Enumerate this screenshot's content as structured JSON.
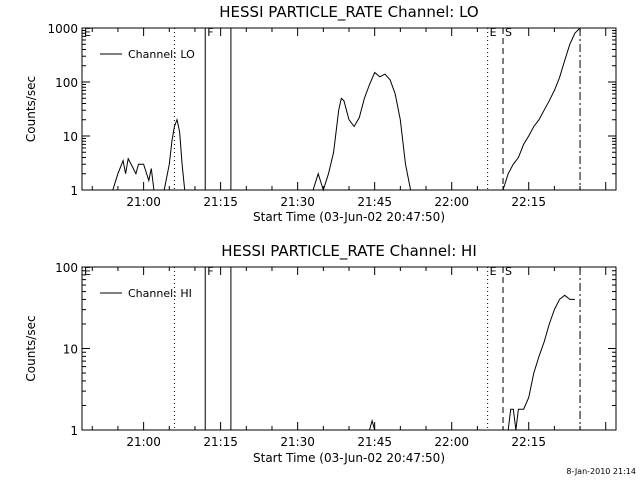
{
  "footer_text": "8-Jan-2010 21:14",
  "chart_data": [
    {
      "type": "line",
      "title": "HESSI PARTICLE_RATE Channel: LO",
      "xlabel": "Start Time (03-Jun-02 20:47:50)",
      "ylabel": "Counts/sec",
      "y_scale": "log",
      "ylim": [
        1,
        1000
      ],
      "xlim": [
        "20:48",
        "22:32"
      ],
      "x_ticks": [
        "21:00",
        "21:15",
        "21:30",
        "21:45",
        "22:00",
        "22:15"
      ],
      "y_ticks": [
        "1",
        "10",
        "100",
        "1000"
      ],
      "legend": {
        "label": "Channel: LO",
        "placement": "top-left"
      },
      "markers": [
        {
          "label": "E",
          "time": "20:48",
          "style": "none"
        },
        {
          "label": "",
          "time": "21:06",
          "style": "dotted"
        },
        {
          "label": "F",
          "time": "21:12",
          "style": "solid"
        },
        {
          "label": "",
          "time": "21:17",
          "style": "solid"
        },
        {
          "label": "E",
          "time": "22:07",
          "style": "dotted"
        },
        {
          "label": "S",
          "time": "22:10",
          "style": "dashed"
        },
        {
          "label": "",
          "time": "22:25",
          "style": "dashdot"
        }
      ],
      "series": [
        {
          "segments": [
            [
              [
                "20:54",
                1
              ],
              [
                "20:55",
                2
              ],
              [
                "20:56",
                3.5
              ],
              [
                "20:56.5",
                2
              ],
              [
                "20:57",
                3.8
              ],
              [
                "20:58",
                2.5
              ],
              [
                "20:58.5",
                2
              ],
              [
                "20:59",
                3
              ],
              [
                "21:00",
                3
              ],
              [
                "21:01",
                1.5
              ],
              [
                "21:01.5",
                2.5
              ],
              [
                "21:02",
                1
              ]
            ],
            [
              [
                "21:04",
                1
              ],
              [
                "21:05",
                3
              ],
              [
                "21:05.5",
                8
              ],
              [
                "21:06",
                15
              ],
              [
                "21:06.5",
                20
              ],
              [
                "21:07",
                12
              ],
              [
                "21:07.5",
                3
              ],
              [
                "21:08",
                1
              ]
            ],
            [
              [
                "21:33",
                1
              ],
              [
                "21:34",
                2
              ],
              [
                "21:35",
                1
              ],
              [
                "21:36",
                2
              ],
              [
                "21:37",
                5
              ],
              [
                "21:38",
                30
              ],
              [
                "21:38.5",
                50
              ],
              [
                "21:39",
                45
              ],
              [
                "21:40",
                20
              ],
              [
                "21:41",
                15
              ],
              [
                "21:42",
                22
              ],
              [
                "21:43",
                50
              ],
              [
                "21:44",
                90
              ],
              [
                "21:45",
                150
              ],
              [
                "21:46",
                125
              ],
              [
                "21:47",
                140
              ],
              [
                "21:48",
                110
              ],
              [
                "21:49",
                60
              ],
              [
                "21:50",
                20
              ],
              [
                "21:51",
                3
              ],
              [
                "21:52",
                1
              ]
            ],
            [
              [
                "22:10",
                1
              ],
              [
                "22:11",
                2
              ],
              [
                "22:12",
                3
              ],
              [
                "22:13",
                4
              ],
              [
                "22:14",
                7
              ],
              [
                "22:15",
                10
              ],
              [
                "22:16",
                15
              ],
              [
                "22:17",
                20
              ],
              [
                "22:18",
                30
              ],
              [
                "22:19",
                45
              ],
              [
                "22:20",
                70
              ],
              [
                "22:21",
                120
              ],
              [
                "22:22",
                250
              ],
              [
                "22:23",
                500
              ],
              [
                "22:24",
                800
              ],
              [
                "22:25",
                1000
              ]
            ]
          ]
        }
      ]
    },
    {
      "type": "line",
      "title": "HESSI PARTICLE_RATE Channel: HI",
      "xlabel": "Start Time (03-Jun-02 20:47:50)",
      "ylabel": "Counts/sec",
      "y_scale": "log",
      "ylim": [
        1,
        100
      ],
      "xlim": [
        "20:48",
        "22:32"
      ],
      "x_ticks": [
        "21:00",
        "21:15",
        "21:30",
        "21:45",
        "22:00",
        "22:15"
      ],
      "y_ticks": [
        "1",
        "10",
        "100"
      ],
      "legend": {
        "label": "Channel: HI",
        "placement": "top-left"
      },
      "markers": [
        {
          "label": "E",
          "time": "20:48",
          "style": "none"
        },
        {
          "label": "",
          "time": "21:06",
          "style": "dotted"
        },
        {
          "label": "F",
          "time": "21:12",
          "style": "solid"
        },
        {
          "label": "",
          "time": "21:17",
          "style": "solid"
        },
        {
          "label": "E",
          "time": "22:07",
          "style": "dotted"
        },
        {
          "label": "S",
          "time": "22:10",
          "style": "dashed"
        },
        {
          "label": "",
          "time": "22:25",
          "style": "dashdot"
        }
      ],
      "series": [
        {
          "segments": [
            [
              [
                "21:44",
                1
              ],
              [
                "21:44.5",
                1.3
              ],
              [
                "21:45",
                1
              ]
            ],
            [
              [
                "22:11",
                1
              ],
              [
                "22:11.5",
                1.8
              ],
              [
                "22:12",
                1.8
              ],
              [
                "22:12.5",
                1
              ],
              [
                "22:13",
                1.8
              ],
              [
                "22:14",
                1.8
              ],
              [
                "22:15",
                2.5
              ],
              [
                "22:16",
                5
              ],
              [
                "22:17",
                8
              ],
              [
                "22:18",
                12
              ],
              [
                "22:19",
                20
              ],
              [
                "22:20",
                30
              ],
              [
                "22:21",
                40
              ],
              [
                "22:22",
                45
              ],
              [
                "22:23",
                40
              ],
              [
                "22:24",
                40
              ]
            ]
          ]
        }
      ]
    }
  ]
}
